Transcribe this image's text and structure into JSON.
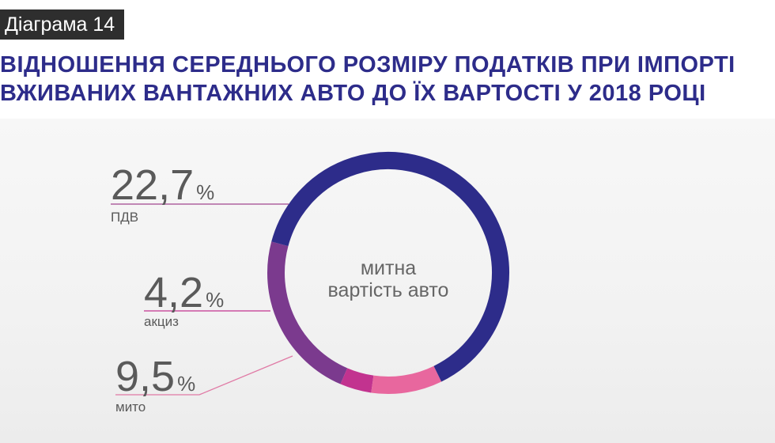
{
  "header": {
    "badge": "Діаграма 14",
    "title_line1": "ВІДНОШЕННЯ СЕРЕДНЬОГО РОЗМІРУ ПОДАТКІВ ПРИ ІМПОРТІ",
    "title_line2": "ВЖИВАНИХ ВАНТАЖНИХ АВТО ДО ЇХ ВАРТОСТІ У 2018 РОЦІ"
  },
  "chart_data": {
    "type": "pie",
    "donut": true,
    "center_label": [
      "митна",
      "вартість авто"
    ],
    "unit": "%",
    "slices": [
      {
        "label": "ПДВ",
        "value": 22.7,
        "display": "22,7",
        "color": "#7b3a8e"
      },
      {
        "label": "акциз",
        "value": 4.2,
        "display": "4,2",
        "color": "#c2338f"
      },
      {
        "label": "мито",
        "value": 9.5,
        "display": "9,5",
        "color": "#e8679e"
      },
      {
        "label": "",
        "value": 63.6,
        "color": "#2d2c8a"
      }
    ],
    "leader_colors": {
      "ПДВ": "#a0468f",
      "акциз": "#c2338f",
      "мито": "#e07aa5"
    }
  }
}
